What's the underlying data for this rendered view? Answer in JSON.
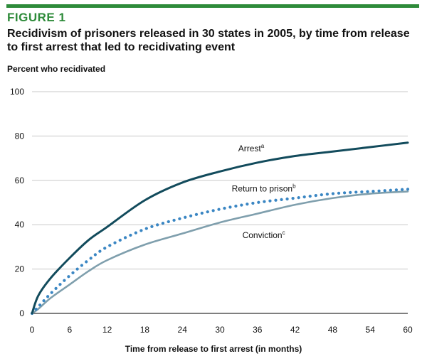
{
  "figure_label": "FIGURE 1",
  "colors": {
    "brand_green": "#2e8b3a",
    "arrest": "#124b5c",
    "return_to_prison": "#3a86c3",
    "conviction": "#7f9fad",
    "gridline": "#c8c8c8"
  },
  "chart_data": {
    "type": "line",
    "title": "Recidivism of prisoners released in 30 states in 2005, by time from release to first arrest that led to recidivating event",
    "ylabel": "Percent who recidivated",
    "xlabel": "Time from release to first arrest (in months)",
    "xlim": [
      0,
      60
    ],
    "ylim": [
      0,
      100
    ],
    "xticks": [
      0,
      6,
      12,
      18,
      24,
      30,
      36,
      42,
      48,
      54,
      60
    ],
    "yticks": [
      0,
      20,
      40,
      60,
      80,
      100
    ],
    "grid": "horizontal",
    "x": [
      0,
      1,
      3,
      6,
      9,
      12,
      18,
      24,
      30,
      36,
      42,
      48,
      54,
      60
    ],
    "series": [
      {
        "name": "Arrest",
        "superscript": "a",
        "style": "solid",
        "values": [
          0,
          8,
          16,
          25,
          33,
          39,
          51,
          59,
          64,
          68,
          71,
          73,
          75,
          77
        ]
      },
      {
        "name": "Return to prison",
        "superscript": "b",
        "style": "dotted",
        "values": [
          0,
          3,
          9,
          17,
          24,
          30,
          38,
          43,
          47,
          50,
          52,
          54,
          55,
          56
        ]
      },
      {
        "name": "Conviction",
        "superscript": "c",
        "style": "solid",
        "values": [
          0,
          2,
          7,
          13,
          19,
          24,
          31,
          36,
          41,
          45,
          49,
          52,
          54,
          55
        ]
      }
    ],
    "annotations": [
      {
        "series": 0,
        "text": "Arrest",
        "superscript": "a",
        "at_x": 35,
        "at_y": 73
      },
      {
        "series": 1,
        "text": "Return to prison",
        "superscript": "b",
        "at_x": 37,
        "at_y": 55
      },
      {
        "series": 2,
        "text": "Conviction",
        "superscript": "c",
        "at_x": 37,
        "at_y": 34
      }
    ]
  }
}
